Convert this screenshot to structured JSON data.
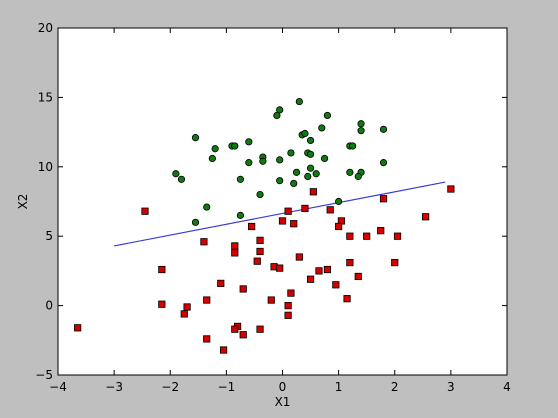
{
  "chart_data": {
    "type": "scatter",
    "title": "",
    "xlabel": "X1",
    "ylabel": "X2",
    "xlim": [
      -4,
      4
    ],
    "ylim": [
      -5,
      20
    ],
    "x_ticks": [
      -4,
      -3,
      -2,
      -1,
      0,
      1,
      2,
      3,
      4
    ],
    "y_ticks": [
      -5,
      0,
      5,
      10,
      15,
      20
    ],
    "x_tick_labels": [
      "−4",
      "−3",
      "−2",
      "−1",
      "0",
      "1",
      "2",
      "3",
      "4"
    ],
    "y_tick_labels": [
      "−5",
      "0",
      "5",
      "10",
      "15",
      "20"
    ],
    "grid": false,
    "legend": "none",
    "colors": {
      "class_a": "#0f7a0f",
      "class_b": "#d40000",
      "boundary": "#3b3bd4",
      "background": "#bfbfbf"
    },
    "series": [
      {
        "marker": "circle",
        "color": "#0f7a0f",
        "points": [
          [
            -0.05,
            14.1
          ],
          [
            0.3,
            14.7
          ],
          [
            0.8,
            13.7
          ],
          [
            -0.1,
            13.7
          ],
          [
            1.4,
            13.1
          ],
          [
            1.8,
            12.7
          ],
          [
            0.7,
            12.8
          ],
          [
            0.35,
            12.3
          ],
          [
            1.4,
            12.6
          ],
          [
            -1.55,
            12.1
          ],
          [
            -0.6,
            11.8
          ],
          [
            0.4,
            12.4
          ],
          [
            0.5,
            11.9
          ],
          [
            -0.9,
            11.5
          ],
          [
            -0.85,
            11.5
          ],
          [
            -1.2,
            11.3
          ],
          [
            1.2,
            11.5
          ],
          [
            1.25,
            11.5
          ],
          [
            0.15,
            11.0
          ],
          [
            0.45,
            11.0
          ],
          [
            0.5,
            10.9
          ],
          [
            -0.35,
            10.7
          ],
          [
            -1.25,
            10.6
          ],
          [
            -0.05,
            10.5
          ],
          [
            -0.35,
            10.4
          ],
          [
            0.75,
            10.6
          ],
          [
            1.8,
            10.3
          ],
          [
            -0.6,
            10.3
          ],
          [
            0.5,
            9.9
          ],
          [
            0.25,
            9.6
          ],
          [
            0.6,
            9.5
          ],
          [
            1.2,
            9.6
          ],
          [
            1.4,
            9.6
          ],
          [
            0.45,
            9.3
          ],
          [
            1.35,
            9.3
          ],
          [
            -1.9,
            9.5
          ],
          [
            -1.8,
            9.1
          ],
          [
            -0.75,
            9.1
          ],
          [
            -0.05,
            9.0
          ],
          [
            0.2,
            8.8
          ],
          [
            -0.4,
            8.0
          ],
          [
            -1.35,
            7.1
          ],
          [
            -1.55,
            6.0
          ],
          [
            -0.75,
            6.5
          ],
          [
            1.0,
            7.5
          ]
        ]
      },
      {
        "marker": "square",
        "color": "#d40000",
        "points": [
          [
            -2.45,
            6.8
          ],
          [
            0.55,
            8.2
          ],
          [
            1.8,
            7.7
          ],
          [
            3.0,
            8.4
          ],
          [
            0.1,
            6.8
          ],
          [
            0.4,
            7.0
          ],
          [
            0.85,
            6.9
          ],
          [
            2.55,
            6.4
          ],
          [
            1.05,
            6.1
          ],
          [
            0.0,
            6.1
          ],
          [
            1.0,
            5.7
          ],
          [
            0.2,
            5.9
          ],
          [
            -0.55,
            5.7
          ],
          [
            1.2,
            5.0
          ],
          [
            1.5,
            5.0
          ],
          [
            1.75,
            5.4
          ],
          [
            2.05,
            5.0
          ],
          [
            -1.4,
            4.6
          ],
          [
            -0.4,
            4.7
          ],
          [
            -0.85,
            4.3
          ],
          [
            -0.85,
            3.8
          ],
          [
            -0.4,
            3.9
          ],
          [
            0.3,
            3.5
          ],
          [
            -0.45,
            3.2
          ],
          [
            1.2,
            3.1
          ],
          [
            2.0,
            3.1
          ],
          [
            -0.15,
            2.8
          ],
          [
            -0.05,
            2.7
          ],
          [
            0.8,
            2.6
          ],
          [
            0.65,
            2.5
          ],
          [
            -2.15,
            2.6
          ],
          [
            1.35,
            2.1
          ],
          [
            0.5,
            1.9
          ],
          [
            -1.1,
            1.6
          ],
          [
            0.95,
            1.5
          ],
          [
            -0.7,
            1.2
          ],
          [
            0.15,
            0.9
          ],
          [
            -1.35,
            0.4
          ],
          [
            -0.2,
            0.4
          ],
          [
            1.15,
            0.5
          ],
          [
            -2.15,
            0.1
          ],
          [
            0.1,
            0.0
          ],
          [
            -1.7,
            -0.1
          ],
          [
            -1.75,
            -0.6
          ],
          [
            0.1,
            -0.7
          ],
          [
            -0.8,
            -1.5
          ],
          [
            -0.85,
            -1.7
          ],
          [
            -0.4,
            -1.7
          ],
          [
            -3.65,
            -1.6
          ],
          [
            -0.7,
            -2.1
          ],
          [
            -1.35,
            -2.4
          ],
          [
            -1.05,
            -3.2
          ]
        ]
      }
    ],
    "line": {
      "x": [
        -3.0,
        2.9
      ],
      "y": [
        4.3,
        8.9
      ]
    }
  }
}
